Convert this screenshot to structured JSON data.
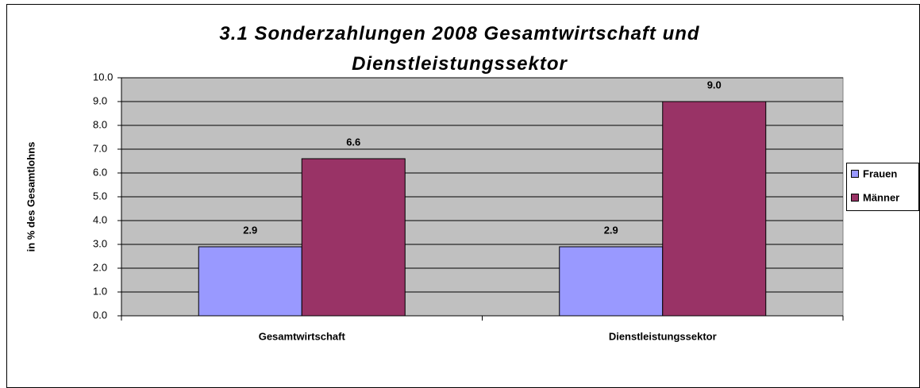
{
  "chart_data": {
    "type": "bar",
    "title": "3.1 Sonderzahlungen 2008 Gesamtwirtschaft und Dienstleistungssektor",
    "y_label": "in % des Gesamtlohns",
    "categories": [
      "Gesamtwirtschaft",
      "Dienstleistungssektor"
    ],
    "series": [
      {
        "name": "Frauen",
        "color": "#9999ff",
        "values": [
          2.9,
          2.9
        ],
        "value_labels": [
          "2.9",
          "2.9"
        ]
      },
      {
        "name": "Männer",
        "color": "#993366",
        "values": [
          6.6,
          9.0
        ],
        "value_labels": [
          "6.6",
          "9.0"
        ]
      }
    ],
    "ylim": [
      0,
      10
    ],
    "yticks": [
      {
        "value": 0,
        "label": "0.0"
      },
      {
        "value": 1,
        "label": "1.0"
      },
      {
        "value": 2,
        "label": "2.0"
      },
      {
        "value": 3,
        "label": "3.0"
      },
      {
        "value": 4,
        "label": "4.0"
      },
      {
        "value": 5,
        "label": "5.0"
      },
      {
        "value": 6,
        "label": "6.0"
      },
      {
        "value": 7,
        "label": "7.0"
      },
      {
        "value": 8,
        "label": "8.0"
      },
      {
        "value": 9,
        "label": "9.0"
      },
      {
        "value": 10,
        "label": "10.0"
      }
    ],
    "grid": true,
    "legend": "right",
    "plot_background": "#c0c0c0"
  }
}
